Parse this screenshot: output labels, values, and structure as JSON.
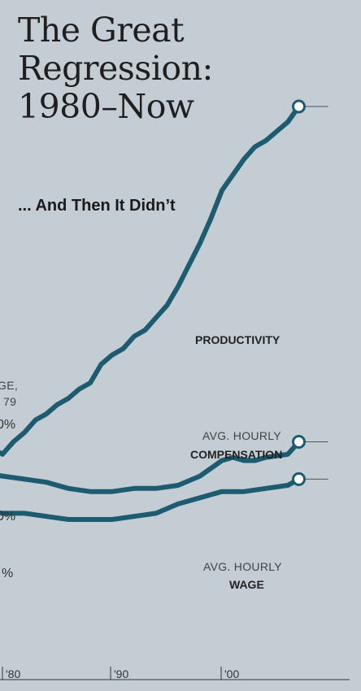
{
  "title_lines": [
    "The Great",
    "Regression:",
    "1980–Now"
  ],
  "subtitle": "... And Then It Didn’t",
  "colors": {
    "background": "#c4ccd4",
    "line": "#1d5b70",
    "text": "#222222"
  },
  "left_clipped_labels": {
    "ge": "GE,",
    "yr": "79",
    "pct1": "0%",
    "pct2": "0%",
    "pct3": "%"
  },
  "chart_data": {
    "type": "line",
    "x_tick_labels": [
      "'80",
      "'90",
      "'00"
    ],
    "series": [
      {
        "name": "PRODUCTIVITY",
        "label_lines": [
          "PRODUCTIVITY"
        ],
        "points": [
          [
            1978,
            100
          ],
          [
            1979,
            101
          ],
          [
            1980,
            99
          ],
          [
            1981,
            103
          ],
          [
            1982,
            106
          ],
          [
            1983,
            110
          ],
          [
            1984,
            112
          ],
          [
            1985,
            115
          ],
          [
            1986,
            117
          ],
          [
            1987,
            120
          ],
          [
            1988,
            122
          ],
          [
            1989,
            128
          ],
          [
            1990,
            131
          ],
          [
            1991,
            133
          ],
          [
            1992,
            137
          ],
          [
            1993,
            139
          ],
          [
            1994,
            143
          ],
          [
            1995,
            147
          ],
          [
            1996,
            153
          ],
          [
            1997,
            160
          ],
          [
            1998,
            167
          ],
          [
            1999,
            175
          ],
          [
            2000,
            184
          ],
          [
            2001,
            189
          ],
          [
            2002,
            194
          ],
          [
            2003,
            198
          ],
          [
            2004,
            200
          ],
          [
            2005,
            203
          ],
          [
            2006,
            206
          ],
          [
            2007,
            211
          ]
        ]
      },
      {
        "name": "AVG. HOURLY COMPENSATION",
        "label_lines": [
          "AVG. HOURLY",
          "COMPENSATION"
        ],
        "points": [
          [
            1978,
            93
          ],
          [
            1980,
            92
          ],
          [
            1982,
            91
          ],
          [
            1984,
            90
          ],
          [
            1986,
            88
          ],
          [
            1988,
            87
          ],
          [
            1990,
            87
          ],
          [
            1992,
            88
          ],
          [
            1994,
            88
          ],
          [
            1996,
            89
          ],
          [
            1998,
            92
          ],
          [
            2000,
            97
          ],
          [
            2001,
            98
          ],
          [
            2002,
            97
          ],
          [
            2003,
            97
          ],
          [
            2004,
            98
          ],
          [
            2006,
            99
          ],
          [
            2007,
            103
          ]
        ]
      },
      {
        "name": "AVG. HOURLY WAGE",
        "label_lines": [
          "AVG. HOURLY",
          "WAGE"
        ],
        "points": [
          [
            1978,
            81
          ],
          [
            1980,
            80
          ],
          [
            1982,
            80
          ],
          [
            1984,
            79
          ],
          [
            1986,
            78
          ],
          [
            1988,
            78
          ],
          [
            1990,
            78
          ],
          [
            1992,
            79
          ],
          [
            1994,
            80
          ],
          [
            1996,
            83
          ],
          [
            1998,
            85
          ],
          [
            2000,
            87
          ],
          [
            2002,
            87
          ],
          [
            2004,
            88
          ],
          [
            2006,
            89
          ],
          [
            2007,
            91
          ]
        ]
      }
    ]
  }
}
